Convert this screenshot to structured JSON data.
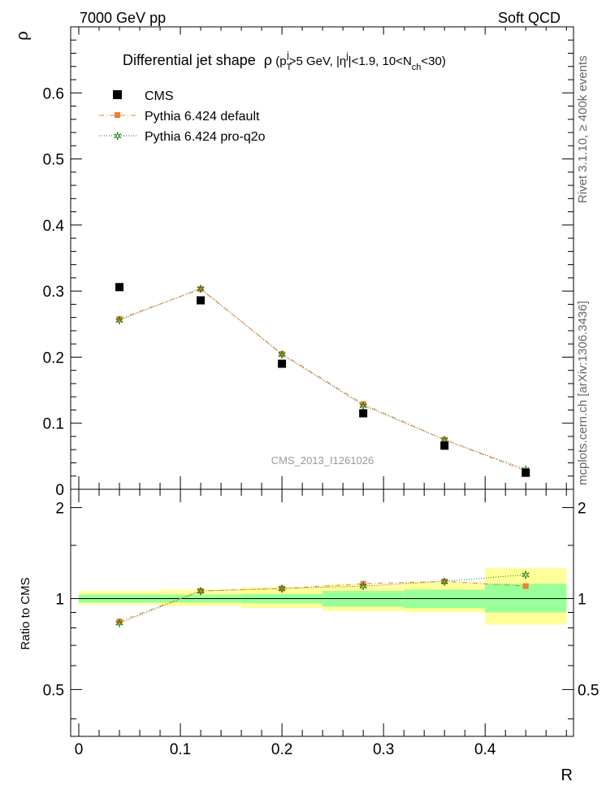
{
  "header": {
    "left": "7000 GeV pp",
    "right": "Soft QCD"
  },
  "side_labels": {
    "rivet": "Rivet 3.1.10, ≥ 400k events",
    "mcplots": "mcplots.cern.ch [arXiv:1306.3436]"
  },
  "watermark": "CMS_2013_I1261026",
  "title": {
    "prefix": "Differential jet shape",
    "rho": "ρ",
    "cut_open": " (p",
    "pt_sub": "T",
    "pt_sup": "j",
    "cut_mid": ">5 GeV, |η",
    "eta_sup": "j",
    "cut_mid2": "|<1.9, 10<N",
    "nch_sub": "ch",
    "cut_close": "<30)"
  },
  "colors": {
    "cms": "#000000",
    "default": "#f08030",
    "proq2o": "#1a7a1a",
    "band_outer": "#ffff99",
    "band_inner": "#99ff99"
  },
  "chart_data": [
    {
      "type": "scatter",
      "panel": "main",
      "ylabel": "ρ",
      "xlim": [
        -0.008,
        0.487
      ],
      "ylim": [
        0,
        0.7
      ],
      "yticks": [
        0,
        0.1,
        0.2,
        0.3,
        0.4,
        0.5,
        0.6
      ],
      "ytick_labels": [
        "0",
        "0.1",
        "0.2",
        "0.3",
        "0.4",
        "0.5",
        "0.6"
      ],
      "grid": false,
      "legend_position": "top-left",
      "x": [
        0.04,
        0.12,
        0.2,
        0.28,
        0.36,
        0.44
      ],
      "series": [
        {
          "name": "CMS",
          "values": [
            0.306,
            0.286,
            0.19,
            0.115,
            0.066,
            0.025
          ]
        },
        {
          "name": "Pythia 6.424 default",
          "values": [
            0.258,
            0.303,
            0.205,
            0.129,
            0.075,
            0.028
          ]
        },
        {
          "name": "Pythia 6.424 pro-q2o",
          "values": [
            0.256,
            0.304,
            0.204,
            0.127,
            0.075,
            0.03
          ]
        }
      ]
    },
    {
      "type": "line",
      "panel": "ratio",
      "ylabel": "Ratio to CMS",
      "xlabel": "R",
      "xlim": [
        -0.008,
        0.487
      ],
      "ylim": [
        0.35,
        2.3
      ],
      "yscale": "log",
      "xticks": [
        0,
        0.1,
        0.2,
        0.3,
        0.4
      ],
      "xtick_labels": [
        "0",
        "0.1",
        "0.2",
        "0.3",
        "0.4"
      ],
      "yticks": [
        0.5,
        1,
        2
      ],
      "ytick_labels": [
        "0.5",
        "1",
        "2"
      ],
      "x": [
        0.04,
        0.12,
        0.2,
        0.28,
        0.36,
        0.44
      ],
      "bins": [
        [
          0.0,
          0.08
        ],
        [
          0.08,
          0.16
        ],
        [
          0.16,
          0.24
        ],
        [
          0.24,
          0.32
        ],
        [
          0.32,
          0.4
        ],
        [
          0.4,
          0.48
        ]
      ],
      "band_inner": [
        [
          0.97,
          1.03
        ],
        [
          0.97,
          1.03
        ],
        [
          0.965,
          1.035
        ],
        [
          0.94,
          1.06
        ],
        [
          0.93,
          1.07
        ],
        [
          0.9,
          1.12
        ]
      ],
      "band_outer": [
        [
          0.955,
          1.06
        ],
        [
          0.945,
          1.07
        ],
        [
          0.93,
          1.09
        ],
        [
          0.91,
          1.11
        ],
        [
          0.9,
          1.13
        ],
        [
          0.82,
          1.26
        ]
      ],
      "series": [
        {
          "name": "Pythia 6.424 default",
          "values": [
            0.84,
            1.06,
            1.08,
            1.12,
            1.14,
            1.1
          ]
        },
        {
          "name": "Pythia 6.424 pro-q2o",
          "values": [
            0.83,
            1.06,
            1.08,
            1.1,
            1.14,
            1.2
          ]
        }
      ]
    }
  ]
}
